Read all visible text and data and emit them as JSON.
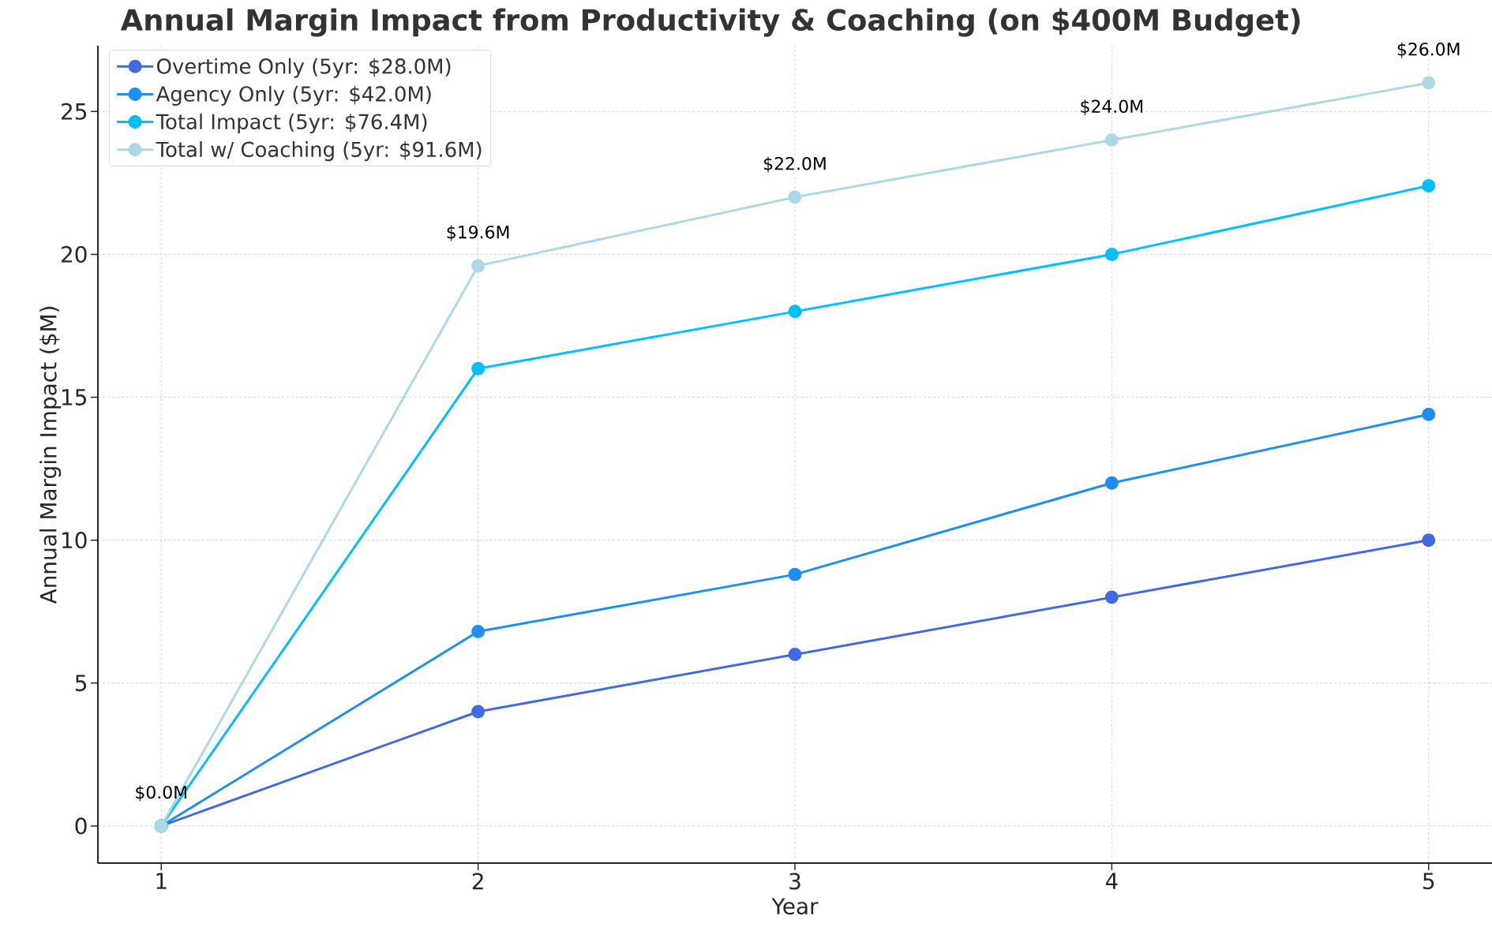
{
  "chart_data": {
    "type": "line",
    "title": "Annual Margin Impact from Productivity & Coaching (on $400M Budget)",
    "xlabel": "Year",
    "ylabel": "Annual Margin Impact ($M)",
    "x": [
      1,
      2,
      3,
      4,
      5
    ],
    "series": [
      {
        "name": "Overtime Only (5yr: $28.0M)",
        "color": "#4169e1",
        "values": [
          0,
          4,
          6,
          8,
          10
        ]
      },
      {
        "name": "Agency Only (5yr: $42.0M)",
        "color": "#1e8ff0",
        "values": [
          0,
          6.8,
          8.8,
          12,
          14.4
        ]
      },
      {
        "name": "Total Impact (5yr: $76.4M)",
        "color": "#00bfff",
        "values": [
          0,
          16,
          18,
          20,
          22.4
        ]
      },
      {
        "name": "Total w/ Coaching (5yr: $91.6M)",
        "color": "#add8e6",
        "values": [
          0,
          19.6,
          22,
          24,
          26
        ],
        "value_labels": [
          "$0.0M",
          "$19.6M",
          "$22.0M",
          "$24.0M",
          "$26.0M"
        ]
      }
    ],
    "xlim": [
      0.8,
      5.2
    ],
    "ylim": [
      -1.3,
      27.3
    ],
    "xticks": [
      1,
      2,
      3,
      4,
      5
    ],
    "yticks": [
      0,
      5,
      10,
      15,
      20,
      25
    ],
    "grid": true,
    "legend": "top left",
    "marker": "circle",
    "line_style": "solid"
  }
}
